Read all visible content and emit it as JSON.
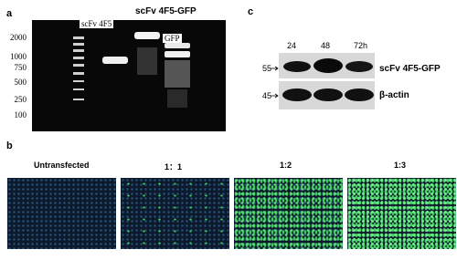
{
  "panel_a": {
    "label": "a",
    "construct": "scFv 4F5-GFP",
    "lane_labels": [
      "scFv 4F5",
      "GFP"
    ],
    "ladder": [
      2000,
      1000,
      750,
      500,
      250,
      100
    ]
  },
  "panel_c": {
    "label": "c",
    "timepoints": [
      "24",
      "48",
      "72h"
    ],
    "markers": [
      55,
      45
    ],
    "bands": [
      "scFv 4F5-GFP",
      "β-actin"
    ]
  },
  "panel_b": {
    "label": "b",
    "conditions": [
      "Untransfected",
      "1：1",
      "1:2",
      "1:3"
    ]
  }
}
